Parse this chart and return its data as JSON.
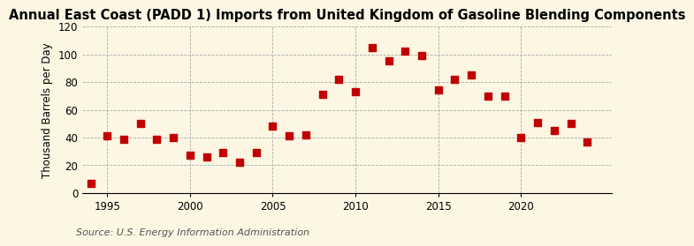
{
  "title": "Annual East Coast (PADD 1) Imports from United Kingdom of Gasoline Blending Components",
  "ylabel": "Thousand Barrels per Day",
  "source": "Source: U.S. Energy Information Administration",
  "years": [
    1994,
    1995,
    1996,
    1997,
    1998,
    1999,
    2000,
    2001,
    2002,
    2003,
    2004,
    2005,
    2006,
    2007,
    2008,
    2009,
    2010,
    2011,
    2012,
    2013,
    2014,
    2015,
    2016,
    2017,
    2018,
    2019,
    2020,
    2021,
    2022,
    2023,
    2024
  ],
  "values": [
    7,
    41,
    39,
    50,
    39,
    40,
    27,
    26,
    29,
    22,
    29,
    48,
    41,
    42,
    71,
    82,
    73,
    105,
    95,
    102,
    99,
    74,
    82,
    85,
    70,
    70,
    40,
    51,
    45,
    50,
    37
  ],
  "marker_color": "#c00000",
  "marker_size": 30,
  "bg_color": "#fdf6e3",
  "grid_color": "#aaaaaa",
  "xlim": [
    1993.5,
    2025.5
  ],
  "ylim": [
    0,
    120
  ],
  "yticks": [
    0,
    20,
    40,
    60,
    80,
    100,
    120
  ],
  "xticks": [
    1995,
    2000,
    2005,
    2010,
    2015,
    2020
  ],
  "title_fontsize": 10.5,
  "label_fontsize": 8.5,
  "tick_fontsize": 8.5,
  "source_fontsize": 8
}
